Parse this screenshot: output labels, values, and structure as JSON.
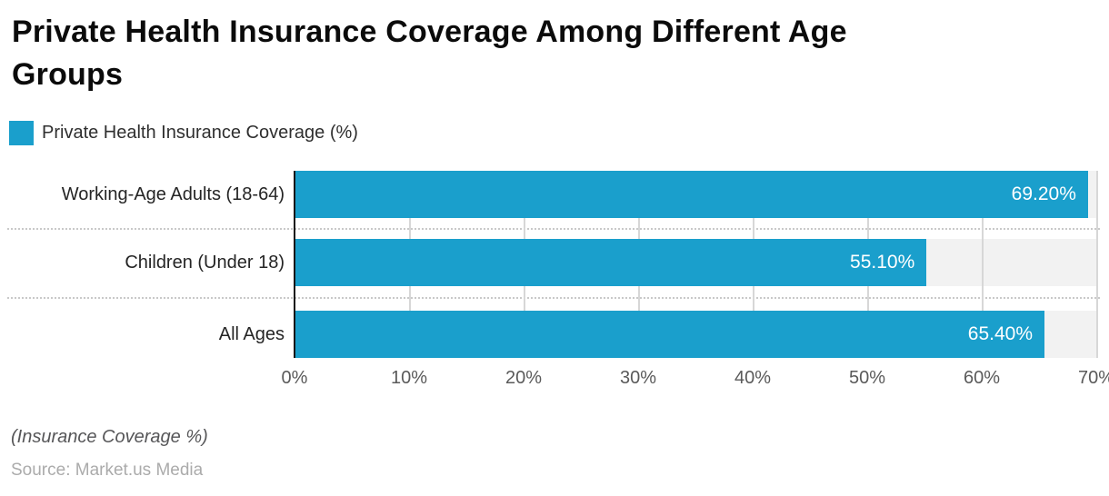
{
  "header": {
    "title_lines": [
      "Private Health Insurance Coverage Among Different Age",
      "Groups"
    ]
  },
  "legend": {
    "label": "Private Health Insurance Coverage (%)",
    "swatch_color": "#1a9fcc"
  },
  "chart_data": {
    "type": "bar",
    "orientation": "horizontal",
    "title": "Private Health Insurance Coverage Among Different Age Groups",
    "series_name": "Private Health Insurance Coverage (%)",
    "categories": [
      "Working-Age Adults (18-64)",
      "Children (Under 18)",
      "All Ages"
    ],
    "values": [
      69.2,
      55.1,
      65.4
    ],
    "value_labels": [
      "69.20%",
      "55.10%",
      "65.40%"
    ],
    "xlim": [
      0,
      70
    ],
    "tick_labels": [
      "0%",
      "10%",
      "20%",
      "30%",
      "40%",
      "50%",
      "60%",
      "70%"
    ],
    "grid": true,
    "legend_position": "top-left",
    "bar_color": "#1a9fcc",
    "track_color": "#f2f2f2",
    "xlabel": "",
    "ylabel": ""
  },
  "footer": {
    "axis_note": "(Insurance Coverage %)",
    "source": "Source: Market.us Media"
  }
}
